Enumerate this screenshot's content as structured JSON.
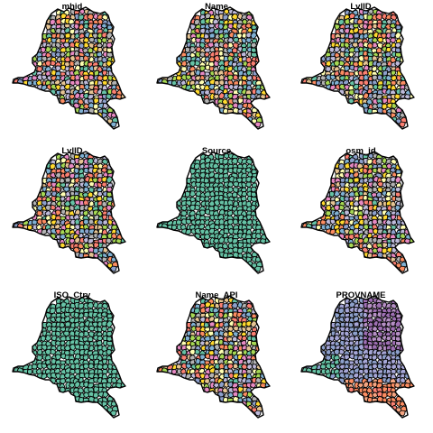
{
  "figure": {
    "panels": [
      {
        "title": "mhid",
        "palette": "categorical"
      },
      {
        "title": "Name",
        "palette": "categorical"
      },
      {
        "title": "LvlID",
        "palette": "categorical"
      },
      {
        "title": "LvlID",
        "palette": "categorical"
      },
      {
        "title": "Source",
        "palette": "single"
      },
      {
        "title": "osm_id",
        "palette": "categorical"
      },
      {
        "title": "ISO_Ctry",
        "palette": "single"
      },
      {
        "title": "Name_API",
        "palette": "categorical"
      },
      {
        "title": "PROVNAME",
        "palette": "provinces"
      }
    ],
    "colors": {
      "categorical": [
        "#66c2a5",
        "#fc8d62",
        "#8da0cb",
        "#e78ac3",
        "#a6d854",
        "#ffd92f",
        "#e5c494",
        "#b3b3b3",
        "#fb8072",
        "#80b1d3",
        "#ffffb3",
        "#bebada"
      ],
      "single": "#66c2a5",
      "provinces": [
        "#66c2a5",
        "#8da0cb",
        "#a6a6d6",
        "#9e6fb3",
        "#b58fc4",
        "#fc8d62",
        "#f4a582",
        "#fb8072"
      ],
      "border": "#000000",
      "background": "#ffffff"
    }
  }
}
